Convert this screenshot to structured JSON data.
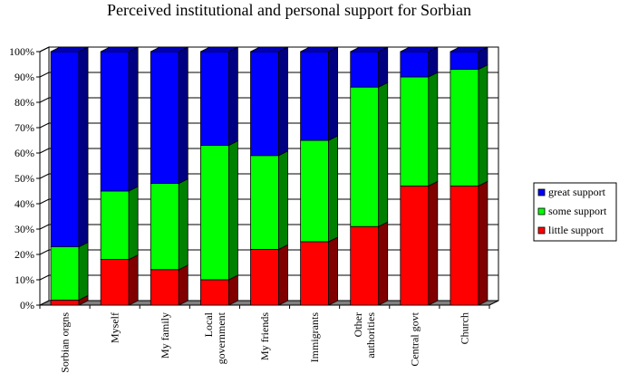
{
  "chart_data": {
    "type": "bar",
    "stacked": true,
    "percent": true,
    "three_d": true,
    "title": "Perceived institutional and personal support for Sorbian",
    "xlabel": "",
    "ylabel": "",
    "ylim": [
      0,
      100
    ],
    "yticks": [
      "0%",
      "10%",
      "20%",
      "30%",
      "40%",
      "50%",
      "60%",
      "70%",
      "80%",
      "90%",
      "100%"
    ],
    "grid": true,
    "legend_position": "right",
    "categories": [
      "Sorbian orgns",
      "Myself",
      "My family",
      "Local government",
      "My friends",
      "Immigrants",
      "Other authorities",
      "Central govt",
      "Church"
    ],
    "series": [
      {
        "name": "little support",
        "color": "#ff0000",
        "side": "#800000",
        "top": "#c00000",
        "values": [
          2,
          18,
          14,
          10,
          22,
          25,
          31,
          47,
          47
        ]
      },
      {
        "name": "some support",
        "color": "#00ff00",
        "side": "#008000",
        "top": "#00c000",
        "values": [
          21,
          27,
          34,
          53,
          37,
          40,
          55,
          43,
          46
        ]
      },
      {
        "name": "great support",
        "color": "#0000ff",
        "side": "#000080",
        "top": "#0000c0",
        "values": [
          77,
          55,
          52,
          37,
          41,
          35,
          14,
          10,
          7
        ]
      }
    ],
    "legend_order": [
      "great support",
      "some support",
      "little support"
    ]
  }
}
